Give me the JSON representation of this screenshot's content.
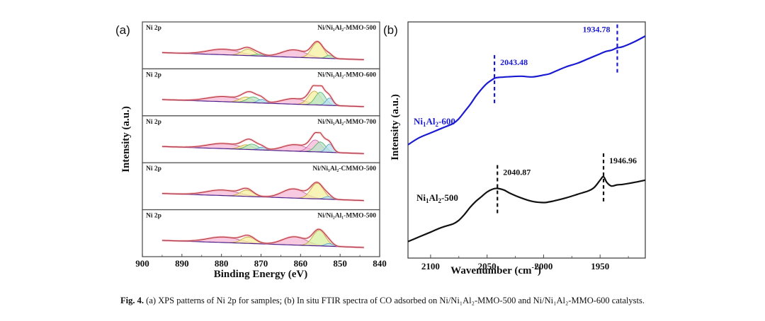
{
  "caption": {
    "prefix": "Fig. 4.",
    "text": " (a) XPS patterns of Ni 2p for samples; (b) In situ FTIR spectra of CO adsorbed on Ni/Ni₁Al₂-MMO-500 and Ni/Ni₁Al₂-MMO-600 catalysts."
  },
  "chart_data": [
    {
      "panel": "(a)",
      "type": "line",
      "title": "",
      "xlabel": "Binding Energy (eV)",
      "ylabel": "Intensity (a.u.)",
      "xlim": [
        900,
        840
      ],
      "x_reversed": true,
      "xticks": [
        900,
        890,
        880,
        870,
        860,
        850,
        840
      ],
      "grid": false,
      "subpanels": [
        {
          "element_label": "Ni 2p",
          "sample_label": "Ni/Ni₁Al₂-MMO-500",
          "peaks": [
            {
              "center": 879.5,
              "height": 0.3,
              "width": 4.0,
              "color": "#f5b8d8"
            },
            {
              "center": 873.3,
              "height": 0.35,
              "width": 1.6,
              "color": "#f5f0a0"
            },
            {
              "center": 870.5,
              "height": 0.1,
              "width": 1.2,
              "color": "#b8e6c8"
            },
            {
              "center": 861.7,
              "height": 0.4,
              "width": 3.0,
              "color": "#f5b8d8"
            },
            {
              "center": 855.7,
              "height": 0.85,
              "width": 1.5,
              "color": "#f5f0a0"
            },
            {
              "center": 852.7,
              "height": 0.18,
              "width": 0.9,
              "color": "#b8e6c8"
            }
          ]
        },
        {
          "element_label": "Ni 2p",
          "sample_label": "Ni/Ni₁Al₂-MMO-600",
          "peaks": [
            {
              "center": 879.5,
              "height": 0.28,
              "width": 4.0,
              "color": "#f5b8d8"
            },
            {
              "center": 873.8,
              "height": 0.3,
              "width": 1.6,
              "color": "#f5f0a0"
            },
            {
              "center": 872.0,
              "height": 0.32,
              "width": 1.5,
              "color": "#b8e6c8"
            },
            {
              "center": 869.8,
              "height": 0.2,
              "width": 1.0,
              "color": "#b8dff0"
            },
            {
              "center": 861.7,
              "height": 0.3,
              "width": 3.0,
              "color": "#f5b8d8"
            },
            {
              "center": 856.5,
              "height": 0.75,
              "width": 1.5,
              "color": "#f5f0a0"
            },
            {
              "center": 855.0,
              "height": 0.7,
              "width": 1.3,
              "color": "#b8e6c8"
            },
            {
              "center": 852.7,
              "height": 0.4,
              "width": 0.9,
              "color": "#b8dff0"
            }
          ]
        },
        {
          "element_label": "Ni 2p",
          "sample_label": "Ni/Ni₁Al₂-MMO-700",
          "peaks": [
            {
              "center": 879.5,
              "height": 0.28,
              "width": 4.0,
              "color": "#f5b8d8"
            },
            {
              "center": 873.8,
              "height": 0.25,
              "width": 1.6,
              "color": "#f5f0a0"
            },
            {
              "center": 872.3,
              "height": 0.3,
              "width": 1.5,
              "color": "#b8e6c8"
            },
            {
              "center": 869.8,
              "height": 0.15,
              "width": 1.0,
              "color": "#b8dff0"
            },
            {
              "center": 861.5,
              "height": 0.35,
              "width": 3.0,
              "color": "#f5b8d8"
            },
            {
              "center": 856.3,
              "height": 0.65,
              "width": 1.5,
              "color": "#f5b8d8"
            },
            {
              "center": 855.0,
              "height": 0.55,
              "width": 1.3,
              "color": "#b8e6c8"
            },
            {
              "center": 852.7,
              "height": 0.45,
              "width": 0.9,
              "color": "#b8dff0"
            }
          ]
        },
        {
          "element_label": "Ni 2p",
          "sample_label": "Ni/Ni₁Al₂-CMMO-500",
          "peaks": [
            {
              "center": 879.8,
              "height": 0.3,
              "width": 4.0,
              "color": "#f5b8d8"
            },
            {
              "center": 873.6,
              "height": 0.35,
              "width": 1.6,
              "color": "#f5f0a0"
            },
            {
              "center": 861.8,
              "height": 0.5,
              "width": 2.8,
              "color": "#f5b8d8"
            },
            {
              "center": 855.8,
              "height": 0.85,
              "width": 1.6,
              "color": "#f5f0a0"
            },
            {
              "center": 853.0,
              "height": 0.15,
              "width": 1.0,
              "color": "#b8dff0"
            }
          ]
        },
        {
          "element_label": "Ni 2p",
          "sample_label": "Ni/Ni₂Al₁-MMO-500",
          "peaks": [
            {
              "center": 879.5,
              "height": 0.3,
              "width": 4.0,
              "color": "#f5b8d8"
            },
            {
              "center": 873.2,
              "height": 0.35,
              "width": 1.7,
              "color": "#f5f0a0"
            },
            {
              "center": 861.5,
              "height": 0.45,
              "width": 3.0,
              "color": "#f5b8d8"
            },
            {
              "center": 855.3,
              "height": 0.85,
              "width": 1.6,
              "color": "#d8f0a0"
            },
            {
              "center": 852.8,
              "height": 0.15,
              "width": 1.0,
              "color": "#b8dff0"
            }
          ]
        }
      ]
    },
    {
      "panel": "(b)",
      "type": "line",
      "title": "",
      "xlabel": "Wavenumber (cm⁻¹)",
      "xlabel_main": "Wavenumber (cm",
      "xlabel_sup": "-1",
      "xlabel_close": ")",
      "ylabel": "Intensity (a.u.)",
      "xlim": [
        2120,
        1910
      ],
      "x_reversed": true,
      "xticks": [
        2100,
        2050,
        2000,
        1950
      ],
      "minor_xticks": [
        2075,
        2025,
        1975,
        1925
      ],
      "ylim": [
        0,
        100
      ],
      "grid": false,
      "series": [
        {
          "name": "Ni₁Al₂-600",
          "name_base": "Ni",
          "name_sub1": "1",
          "name_mid": "Al",
          "name_sub2": "2",
          "name_tail": "-600",
          "color": "#1a1ad0",
          "x": [
            2120,
            2110,
            2100,
            2090,
            2080,
            2075,
            2070,
            2065,
            2060,
            2055,
            2050,
            2045,
            2043,
            2040,
            2030,
            2020,
            2010,
            2000,
            1995,
            1990,
            1980,
            1970,
            1960,
            1950,
            1945,
            1940,
            1935,
            1930,
            1920,
            1910
          ],
          "values": [
            58,
            61,
            63,
            65,
            67,
            69,
            72,
            75,
            78.5,
            81.5,
            84,
            85.7,
            86.2,
            86.5,
            86.8,
            87,
            86.7,
            87.5,
            88,
            89,
            91,
            92.5,
            94.5,
            96.5,
            97.5,
            98,
            99,
            99.5,
            101.5,
            104
          ]
        },
        {
          "name": "Ni₁Al₂-500",
          "name_base": "Ni",
          "name_sub1": "1",
          "name_mid": "Al",
          "name_sub2": "2",
          "name_tail": "-500",
          "color": "#111111",
          "x": [
            2120,
            2110,
            2100,
            2090,
            2080,
            2075,
            2070,
            2065,
            2060,
            2055,
            2050,
            2045,
            2041,
            2035,
            2030,
            2020,
            2010,
            2000,
            1995,
            1990,
            1980,
            1970,
            1960,
            1955,
            1950,
            1947,
            1944,
            1940,
            1935,
            1930,
            1920,
            1910
          ],
          "values": [
            17,
            19,
            21,
            23,
            24.5,
            26,
            28.5,
            31.5,
            34,
            36,
            38,
            39.2,
            39.5,
            38.8,
            37.5,
            35.5,
            34,
            33.5,
            33.8,
            34.3,
            35.5,
            37,
            38.5,
            40,
            43,
            44.5,
            42,
            40.5,
            41,
            41.2,
            42,
            43
          ]
        }
      ],
      "annotations": [
        {
          "series": 0,
          "x": 2043.48,
          "label": "2043.48",
          "color": "#1a1ad0"
        },
        {
          "series": 0,
          "x": 1934.78,
          "label": "1934.78",
          "color": "#1a1ad0"
        },
        {
          "series": 1,
          "x": 2040.87,
          "label": "2040.87",
          "color": "#111111"
        },
        {
          "series": 1,
          "x": 1946.96,
          "label": "1946.96",
          "color": "#111111"
        }
      ]
    }
  ]
}
